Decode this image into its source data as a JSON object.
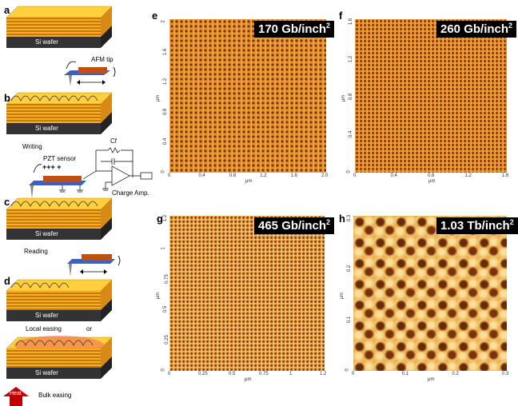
{
  "panels_left": {
    "a": "a",
    "b": "b",
    "c": "c",
    "d": "d",
    "si_wafer": "Si wafer",
    "afm_tip": "AFM tip",
    "writing": "Writing",
    "cf": "Cf",
    "pzt_sensor": "PZT sensor",
    "charge_amp": "Charge Amp.",
    "reading": "Reading",
    "local_erasing": "Local easing",
    "or": "or",
    "heat": "Heat",
    "bulk_erasing": "Bulk easing"
  },
  "panels_right": [
    {
      "letter": "e",
      "density": "170 Gb/inch",
      "exp": "2",
      "unit": "μm",
      "xticks": [
        "0",
        "0.4",
        "0.8",
        "1.2",
        "1.6",
        "2.0"
      ],
      "yticks": [
        "0",
        "0.4",
        "0.8",
        "1.2",
        "1.6",
        "2"
      ]
    },
    {
      "letter": "f",
      "density": "260 Gb/inch",
      "exp": "2",
      "unit": "μm",
      "xticks": [
        "0",
        "0.4",
        "0.8",
        "1.2",
        "1.6"
      ],
      "yticks": [
        "0",
        "0.4",
        "0.8",
        "1.2",
        "1.6"
      ]
    },
    {
      "letter": "g",
      "density": "465 Gb/inch",
      "exp": "2",
      "unit": "μm",
      "xticks": [
        "0",
        "0.25",
        "0.5",
        "0.75",
        "1",
        "1.2"
      ],
      "yticks": [
        "0",
        "0.25",
        "0.5",
        "0.75",
        "1",
        "1.2"
      ]
    },
    {
      "letter": "h",
      "density": "1.03 Tb/inch",
      "exp": "2",
      "unit": "μm",
      "xticks": [
        "0",
        "0.1",
        "0.2",
        "0.3"
      ],
      "yticks": [
        "0",
        "0.1",
        "0.2",
        "0.3"
      ]
    }
  ],
  "colors": {
    "layer_orange": "#f0a020",
    "layer_dark": "#c87810",
    "wafer": "#333333",
    "afm_a": "#c06010",
    "afm_b": "#f0b050",
    "heat": "#c00000"
  }
}
